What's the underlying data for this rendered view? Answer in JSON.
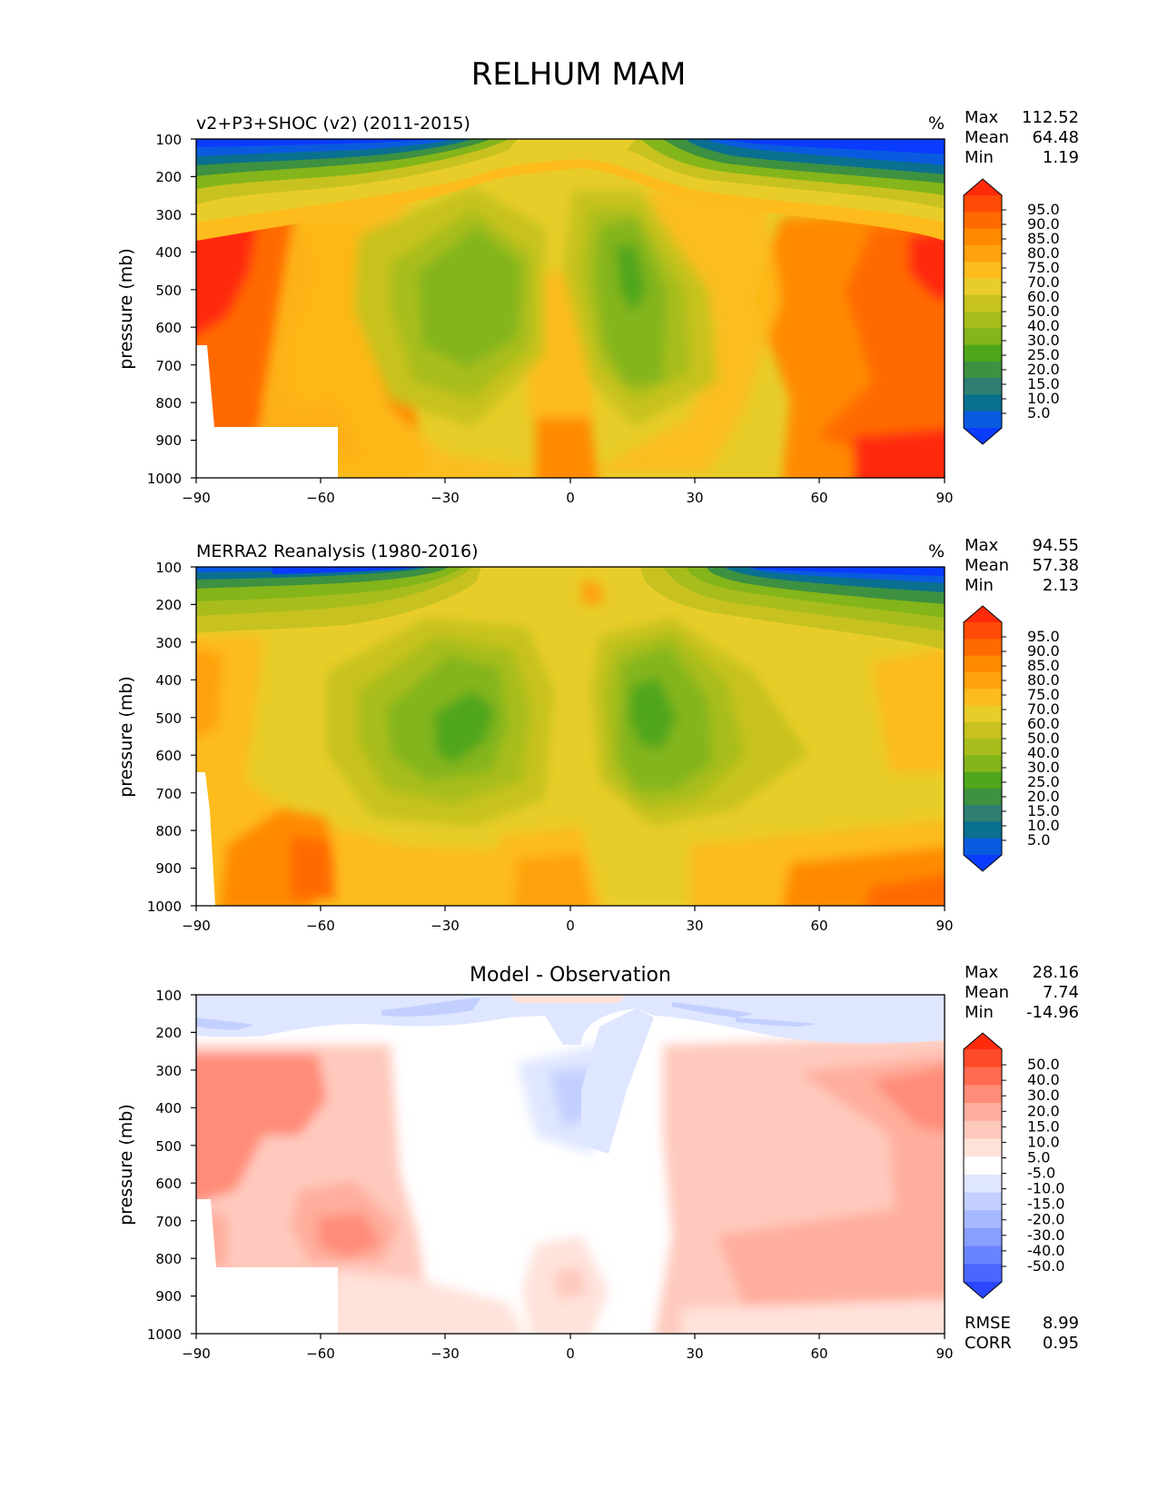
{
  "figure_title": "RELHUM MAM",
  "chart_data": [
    {
      "type": "heatmap",
      "panel": "model",
      "title_left": "v2+P3+SHOC (v2) (2011-2015)",
      "units": "%",
      "ylabel": "pressure (mb)",
      "xlabel": "",
      "xlim": [
        -90,
        90
      ],
      "ylim": [
        1000,
        100
      ],
      "x_ticks": [
        "−90",
        "−60",
        "−30",
        "0",
        "30",
        "60",
        "90"
      ],
      "y_ticks": [
        "100",
        "200",
        "300",
        "400",
        "500",
        "600",
        "700",
        "800",
        "900",
        "1000"
      ],
      "stats": [
        {
          "label": "Max",
          "value": "112.52"
        },
        {
          "label": "Mean",
          "value": "64.48"
        },
        {
          "label": "Min",
          "value": "1.19"
        }
      ],
      "colorbar_levels": [
        "95.0",
        "90.0",
        "85.0",
        "80.0",
        "75.0",
        "70.0",
        "60.0",
        "50.0",
        "40.0",
        "30.0",
        "25.0",
        "20.0",
        "15.0",
        "10.0",
        "5.0"
      ],
      "colorbar_colors": [
        "#ff2a0a",
        "#ff4b05",
        "#ff6a00",
        "#ff8a00",
        "#ffa20d",
        "#fdbb1c",
        "#e8cd2a",
        "#c7c21f",
        "#a8bd1c",
        "#84b51a",
        "#4fa61a",
        "#3d9140",
        "#2f7e73",
        "#0a7090",
        "#0a5ae0",
        "#0a3cff"
      ],
      "fields": [
        {
          "lat": -90,
          "p": 100,
          "v": 3
        },
        {
          "lat": 0,
          "p": 500,
          "v": 68
        }
      ]
    },
    {
      "type": "heatmap",
      "panel": "observation",
      "title_left": "MERRA2 Reanalysis (1980-2016)",
      "units": "%",
      "ylabel": "pressure (mb)",
      "xlabel": "",
      "xlim": [
        -90,
        90
      ],
      "ylim": [
        1000,
        100
      ],
      "x_ticks": [
        "−90",
        "−60",
        "−30",
        "0",
        "30",
        "60",
        "90"
      ],
      "y_ticks": [
        "100",
        "200",
        "300",
        "400",
        "500",
        "600",
        "700",
        "800",
        "900",
        "1000"
      ],
      "stats": [
        {
          "label": "Max",
          "value": "94.55"
        },
        {
          "label": "Mean",
          "value": "57.38"
        },
        {
          "label": "Min",
          "value": "2.13"
        }
      ],
      "colorbar_levels": [
        "95.0",
        "90.0",
        "85.0",
        "80.0",
        "75.0",
        "70.0",
        "60.0",
        "50.0",
        "40.0",
        "30.0",
        "25.0",
        "20.0",
        "15.0",
        "10.0",
        "5.0"
      ],
      "colorbar_colors": [
        "#ff2a0a",
        "#ff4b05",
        "#ff6a00",
        "#ff8a00",
        "#ffa20d",
        "#fdbb1c",
        "#e8cd2a",
        "#c7c21f",
        "#a8bd1c",
        "#84b51a",
        "#4fa61a",
        "#3d9140",
        "#2f7e73",
        "#0a7090",
        "#0a5ae0",
        "#0a3cff"
      ]
    },
    {
      "type": "heatmap",
      "panel": "difference",
      "title_center": "Model - Observation",
      "ylabel": "pressure (mb)",
      "xlabel": "",
      "xlim": [
        -90,
        90
      ],
      "ylim": [
        1000,
        100
      ],
      "x_ticks": [
        "−90",
        "−60",
        "−30",
        "0",
        "30",
        "60",
        "90"
      ],
      "y_ticks": [
        "100",
        "200",
        "300",
        "400",
        "500",
        "600",
        "700",
        "800",
        "900",
        "1000"
      ],
      "stats": [
        {
          "label": "Max",
          "value": "28.16"
        },
        {
          "label": "Mean",
          "value": "7.74"
        },
        {
          "label": "Min",
          "value": "-14.96"
        }
      ],
      "metrics": [
        {
          "label": "RMSE",
          "value": "8.99"
        },
        {
          "label": "CORR",
          "value": "0.95"
        }
      ],
      "colorbar_levels": [
        "50.0",
        "40.0",
        "30.0",
        "20.0",
        "15.0",
        "10.0",
        "5.0",
        "-5.0",
        "-10.0",
        "-15.0",
        "-20.0",
        "-30.0",
        "-40.0",
        "-50.0"
      ],
      "colorbar_colors": [
        "#ff2a0a",
        "#ff4a2a",
        "#ff6a50",
        "#ff8c78",
        "#ffad9c",
        "#ffc9bd",
        "#ffe2da",
        "#ffffff",
        "#dfe6ff",
        "#c3d0ff",
        "#a6b8ff",
        "#889fff",
        "#6a84ff",
        "#4a66ff",
        "#2a46ff"
      ]
    }
  ]
}
